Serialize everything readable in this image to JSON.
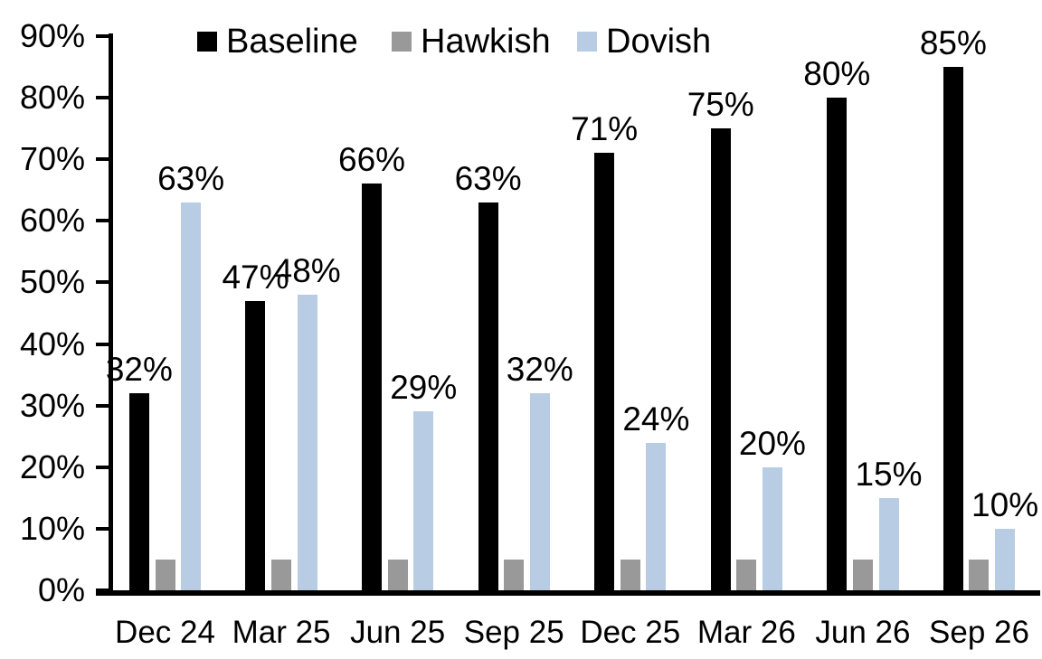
{
  "chart_data": {
    "type": "bar",
    "title": "",
    "xlabel": "",
    "ylabel": "",
    "ylim": [
      0,
      90
    ],
    "grid": false,
    "legend_position": "top",
    "value_suffix": "%",
    "categories": [
      "Dec 24",
      "Mar 25",
      "Jun 25",
      "Sep 25",
      "Dec 25",
      "Mar 26",
      "Jun 26",
      "Sep 26"
    ],
    "y_tick_labels": [
      "0%",
      "10%",
      "20%",
      "30%",
      "40%",
      "50%",
      "60%",
      "70%",
      "80%",
      "90%"
    ],
    "series": [
      {
        "name": "Baseline",
        "color": "#000000",
        "values": [
          32,
          47,
          66,
          63,
          71,
          75,
          80,
          85
        ],
        "data_labels": [
          "32%",
          "47%",
          "66%",
          "63%",
          "71%",
          "75%",
          "80%",
          "85%"
        ]
      },
      {
        "name": "Hawkish",
        "color": "#999999",
        "values": [
          5,
          5,
          5,
          5,
          5,
          5,
          5,
          5
        ],
        "data_labels": null
      },
      {
        "name": "Dovish",
        "color": "#b8cce4",
        "values": [
          63,
          48,
          29,
          32,
          24,
          20,
          15,
          10
        ],
        "data_labels": [
          "63%",
          "48%",
          "29%",
          "32%",
          "24%",
          "20%",
          "15%",
          "10%"
        ]
      }
    ],
    "axis_color": "#000000"
  }
}
